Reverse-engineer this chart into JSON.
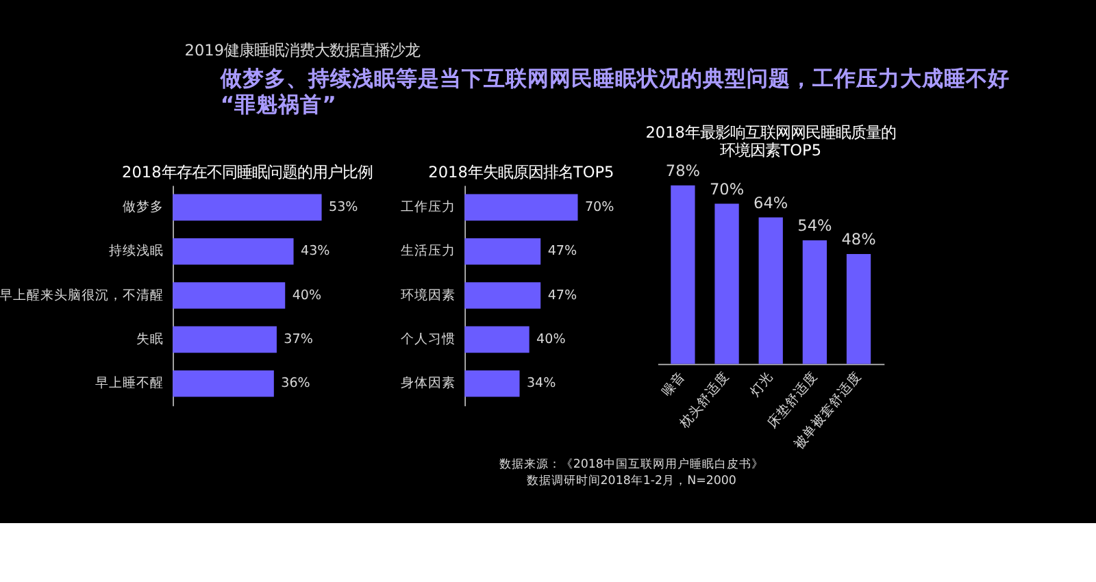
{
  "chart_data": [
    {
      "type": "bar",
      "orientation": "horizontal",
      "title": "2018年存在不同睡眠问题的用户比例",
      "annotations": [
        "2019健康睡眠消费大数据直播沙龙",
        "做梦多、持续浅眠等是当下互联网网民睡眠状况的典型问题，工作压力大成睡不好“罪魁祸首”"
      ],
      "categories": [
        "做梦多",
        "持续浅眠",
        "早上醒来头脑很沉，不清醒",
        "失眠",
        "早上睡不醒"
      ],
      "values": [
        53,
        43,
        40,
        37,
        36
      ],
      "value_labels": [
        "53%",
        "43%",
        "40%",
        "37%",
        "36%"
      ],
      "color": "#6a5cff"
    },
    {
      "type": "bar",
      "orientation": "horizontal",
      "title": "2018年失眠原因排名TOP5",
      "annotations": [
        "数据来源：《2018中国互联网用户睡眠白皮书》",
        "数据调研时间2018年1-2月，N=2000"
      ],
      "categories": [
        "工作压力",
        "生活压力",
        "环境因素",
        "个人习惯",
        "身体因素"
      ],
      "values": [
        70,
        47,
        47,
        40,
        34
      ],
      "value_labels": [
        "70%",
        "47%",
        "47%",
        "40%",
        "34%"
      ],
      "color": "#6a5cff"
    },
    {
      "type": "bar",
      "title": "2018年最影响互联网网民睡眠质量的环境因素TOP5",
      "categories": [
        "噪音",
        "枕头舒适度",
        "灯光",
        "床垫舒适度",
        "被单被套舒适度"
      ],
      "values": [
        78,
        70,
        64,
        54,
        48
      ],
      "value_labels": [
        "78%",
        "70%",
        "64%",
        "54%",
        "48%"
      ],
      "color": "#6a5cff"
    }
  ]
}
